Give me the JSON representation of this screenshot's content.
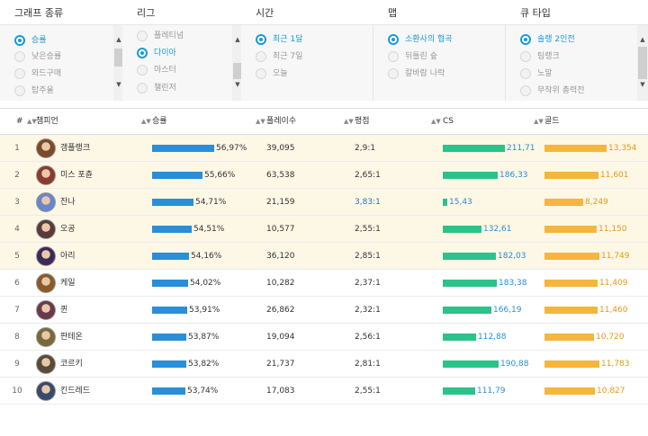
{
  "filters": {
    "graph_type": {
      "header": "그래프 종류",
      "options": [
        "승률",
        "낮은승률",
        "와드구매",
        "탑주율"
      ],
      "selected": 0
    },
    "league": {
      "header": "리그",
      "options": [
        "플레티넘",
        "다이아",
        "마스터",
        "챌린저"
      ],
      "selected": 1
    },
    "time": {
      "header": "시간",
      "options": [
        "최근 1달",
        "최근 7일",
        "오늘"
      ],
      "selected": 0
    },
    "map": {
      "header": "맵",
      "options": [
        "소환사의 협곡",
        "뒤틀린 숲",
        "칼바람 나락"
      ],
      "selected": 0
    },
    "queue": {
      "header": "큐 타입",
      "options": [
        "솔랭 2인전",
        "팀랭크",
        "노말",
        "무작위 총력전"
      ],
      "selected": 0
    }
  },
  "table": {
    "headers": {
      "rank": "#",
      "champion": "챔피언",
      "winrate": "승률",
      "plays": "플레이수",
      "kda": "평점",
      "cs": "CS",
      "gold": "골드"
    },
    "rows": [
      {
        "rank": "1",
        "champion": "갱플랭크",
        "winrate": "56,97%",
        "winrate_value": 56.97,
        "plays": "39,095",
        "kda": "2,9:1",
        "cs": "211,71",
        "cs_value": 211.71,
        "gold": "13,354",
        "gold_value": 13354,
        "highlight": true
      },
      {
        "rank": "2",
        "champion": "미스 포츈",
        "winrate": "55,66%",
        "winrate_value": 55.66,
        "plays": "63,538",
        "kda": "2,65:1",
        "cs": "186,33",
        "cs_value": 186.33,
        "gold": "11,601",
        "gold_value": 11601,
        "highlight": true
      },
      {
        "rank": "3",
        "champion": "잔나",
        "winrate": "54,71%",
        "winrate_value": 54.71,
        "plays": "21,159",
        "kda": "3,83:1",
        "cs": "15,43",
        "cs_value": 15.43,
        "gold": "8,249",
        "gold_value": 8249,
        "highlight": true,
        "kda_highlight": true
      },
      {
        "rank": "4",
        "champion": "오공",
        "winrate": "54,51%",
        "winrate_value": 54.51,
        "plays": "10,577",
        "kda": "2,55:1",
        "cs": "132,61",
        "cs_value": 132.61,
        "gold": "11,150",
        "gold_value": 11150,
        "highlight": true
      },
      {
        "rank": "5",
        "champion": "아리",
        "winrate": "54,16%",
        "winrate_value": 54.16,
        "plays": "36,120",
        "kda": "2,85:1",
        "cs": "182,03",
        "cs_value": 182.03,
        "gold": "11,749",
        "gold_value": 11749,
        "highlight": true
      },
      {
        "rank": "6",
        "champion": "케일",
        "winrate": "54,02%",
        "winrate_value": 54.02,
        "plays": "10,282",
        "kda": "2,37:1",
        "cs": "183,38",
        "cs_value": 183.38,
        "gold": "11,409",
        "gold_value": 11409,
        "highlight": false
      },
      {
        "rank": "7",
        "champion": "퀸",
        "winrate": "53,91%",
        "winrate_value": 53.91,
        "plays": "26,862",
        "kda": "2,32:1",
        "cs": "166,19",
        "cs_value": 166.19,
        "gold": "11,460",
        "gold_value": 11460,
        "highlight": false
      },
      {
        "rank": "8",
        "champion": "판테온",
        "winrate": "53,87%",
        "winrate_value": 53.87,
        "plays": "19,094",
        "kda": "2,56:1",
        "cs": "112,88",
        "cs_value": 112.88,
        "gold": "10,720",
        "gold_value": 10720,
        "highlight": false
      },
      {
        "rank": "9",
        "champion": "코르키",
        "winrate": "53,82%",
        "winrate_value": 53.82,
        "plays": "21,737",
        "kda": "2,81:1",
        "cs": "190,88",
        "cs_value": 190.88,
        "gold": "11,783",
        "gold_value": 11783,
        "highlight": false
      },
      {
        "rank": "10",
        "champion": "킨드레드",
        "winrate": "53,74%",
        "winrate_value": 53.74,
        "plays": "17,083",
        "kda": "2,55:1",
        "cs": "111,79",
        "cs_value": 111.79,
        "gold": "10,827",
        "gold_value": 10827,
        "highlight": false
      }
    ]
  },
  "colors": {
    "accent": "#1a9ad6",
    "winrate_bar": "#2a8ed8",
    "cs_bar": "#2cc28a",
    "gold_bar": "#f4b63c",
    "highlight_row": "#fdf7e6"
  },
  "icons": {
    "sort": "sort-arrows-icon",
    "scroll_up": "scroll-up-arrow-icon",
    "scroll_down": "scroll-down-arrow-icon",
    "radio": "radio-button-icon",
    "avatar": "champion-portrait"
  }
}
